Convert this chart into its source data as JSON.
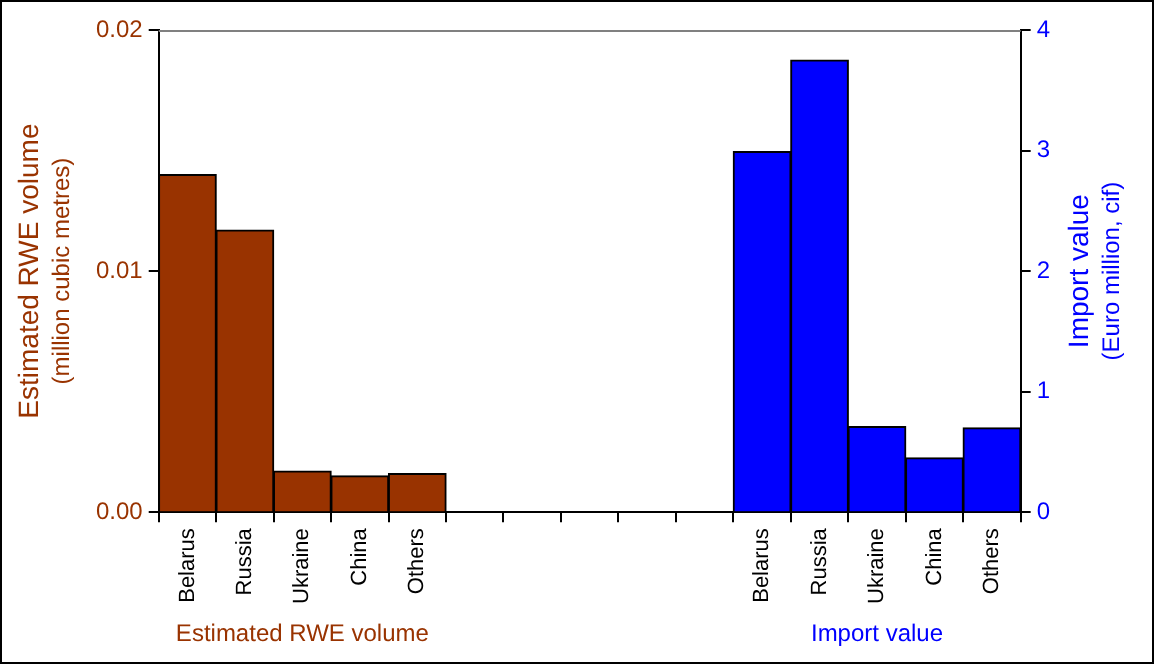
{
  "chart_data": {
    "type": "bar",
    "categories": [
      "Belarus",
      "Russia",
      "Ukraine",
      "China",
      "Others",
      null,
      null,
      null,
      null,
      null,
      "Belarus",
      "Russia",
      "Ukraine",
      "China",
      "Others"
    ],
    "ylabel": "Estimated RWE volume\n(million cubic metres)",
    "y2label": "Import value\n(Euro million, cif)",
    "ylim": [
      0,
      0.02
    ],
    "yticks": [
      {
        "value": 0,
        "label": "0.00"
      },
      0.01,
      0.02
    ],
    "y2lim": [
      0,
      4
    ],
    "y2ticks": [
      0,
      1,
      2,
      3,
      4
    ],
    "series": [
      {
        "name": "Estimated RWE volume",
        "color": "#993300",
        "values": [
          0.014,
          0.0117,
          0.0017,
          0.0015,
          0.0016,
          null,
          null,
          null,
          null,
          null,
          null,
          null,
          null,
          null,
          null
        ]
      },
      {
        "name": "Import value",
        "color": "#0000ff",
        "axis": "y2",
        "values": [
          null,
          null,
          null,
          null,
          null,
          null,
          null,
          null,
          null,
          null,
          2.99,
          3.75,
          0.71,
          0.45,
          0.7
        ]
      }
    ],
    "legend": false,
    "grid": false
  }
}
